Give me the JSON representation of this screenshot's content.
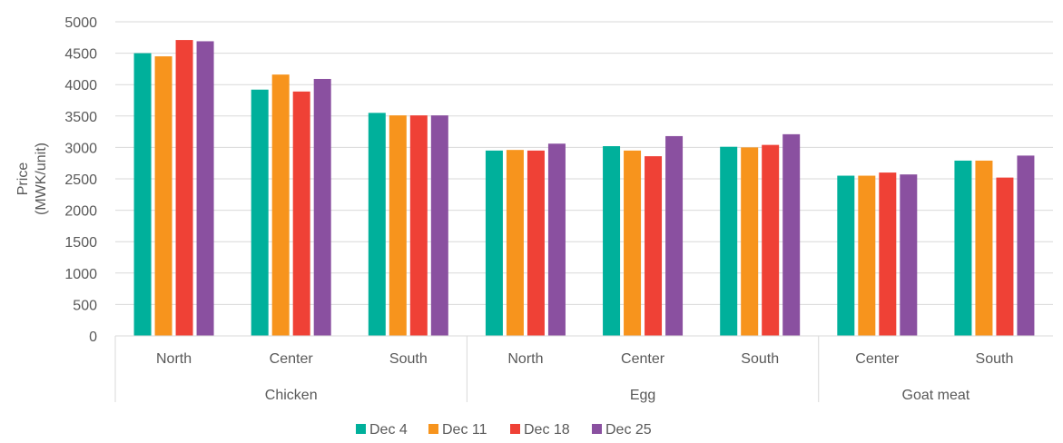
{
  "chart_data": {
    "type": "bar",
    "ylabel_lines": [
      "Price",
      "(MWK/unit)"
    ],
    "ylim": [
      0,
      5000
    ],
    "yticks": [
      0,
      500,
      1000,
      1500,
      2000,
      2500,
      3000,
      3500,
      4000,
      4500,
      5000
    ],
    "grid": true,
    "legend_position": "bottom",
    "groups": [
      {
        "label": "Chicken",
        "categories": [
          "North",
          "Center",
          "South"
        ]
      },
      {
        "label": "Egg",
        "categories": [
          "North",
          "Center",
          "South"
        ]
      },
      {
        "label": "Goat meat",
        "categories": [
          "Center",
          "South"
        ]
      }
    ],
    "series": [
      {
        "name": "Dec 4",
        "color": "#00B09B",
        "values": [
          4500,
          3920,
          3550,
          2950,
          3020,
          3010,
          2550,
          2790
        ]
      },
      {
        "name": "Dec 11",
        "color": "#F7941D",
        "values": [
          4450,
          4160,
          3510,
          2960,
          2950,
          3000,
          2550,
          2790
        ]
      },
      {
        "name": "Dec 18",
        "color": "#EF4136",
        "values": [
          4710,
          3890,
          3510,
          2950,
          2860,
          3040,
          2600,
          2520
        ]
      },
      {
        "name": "Dec 25",
        "color": "#8A50A0",
        "values": [
          4690,
          4090,
          3510,
          3060,
          3180,
          3210,
          2570,
          2870
        ]
      }
    ]
  }
}
